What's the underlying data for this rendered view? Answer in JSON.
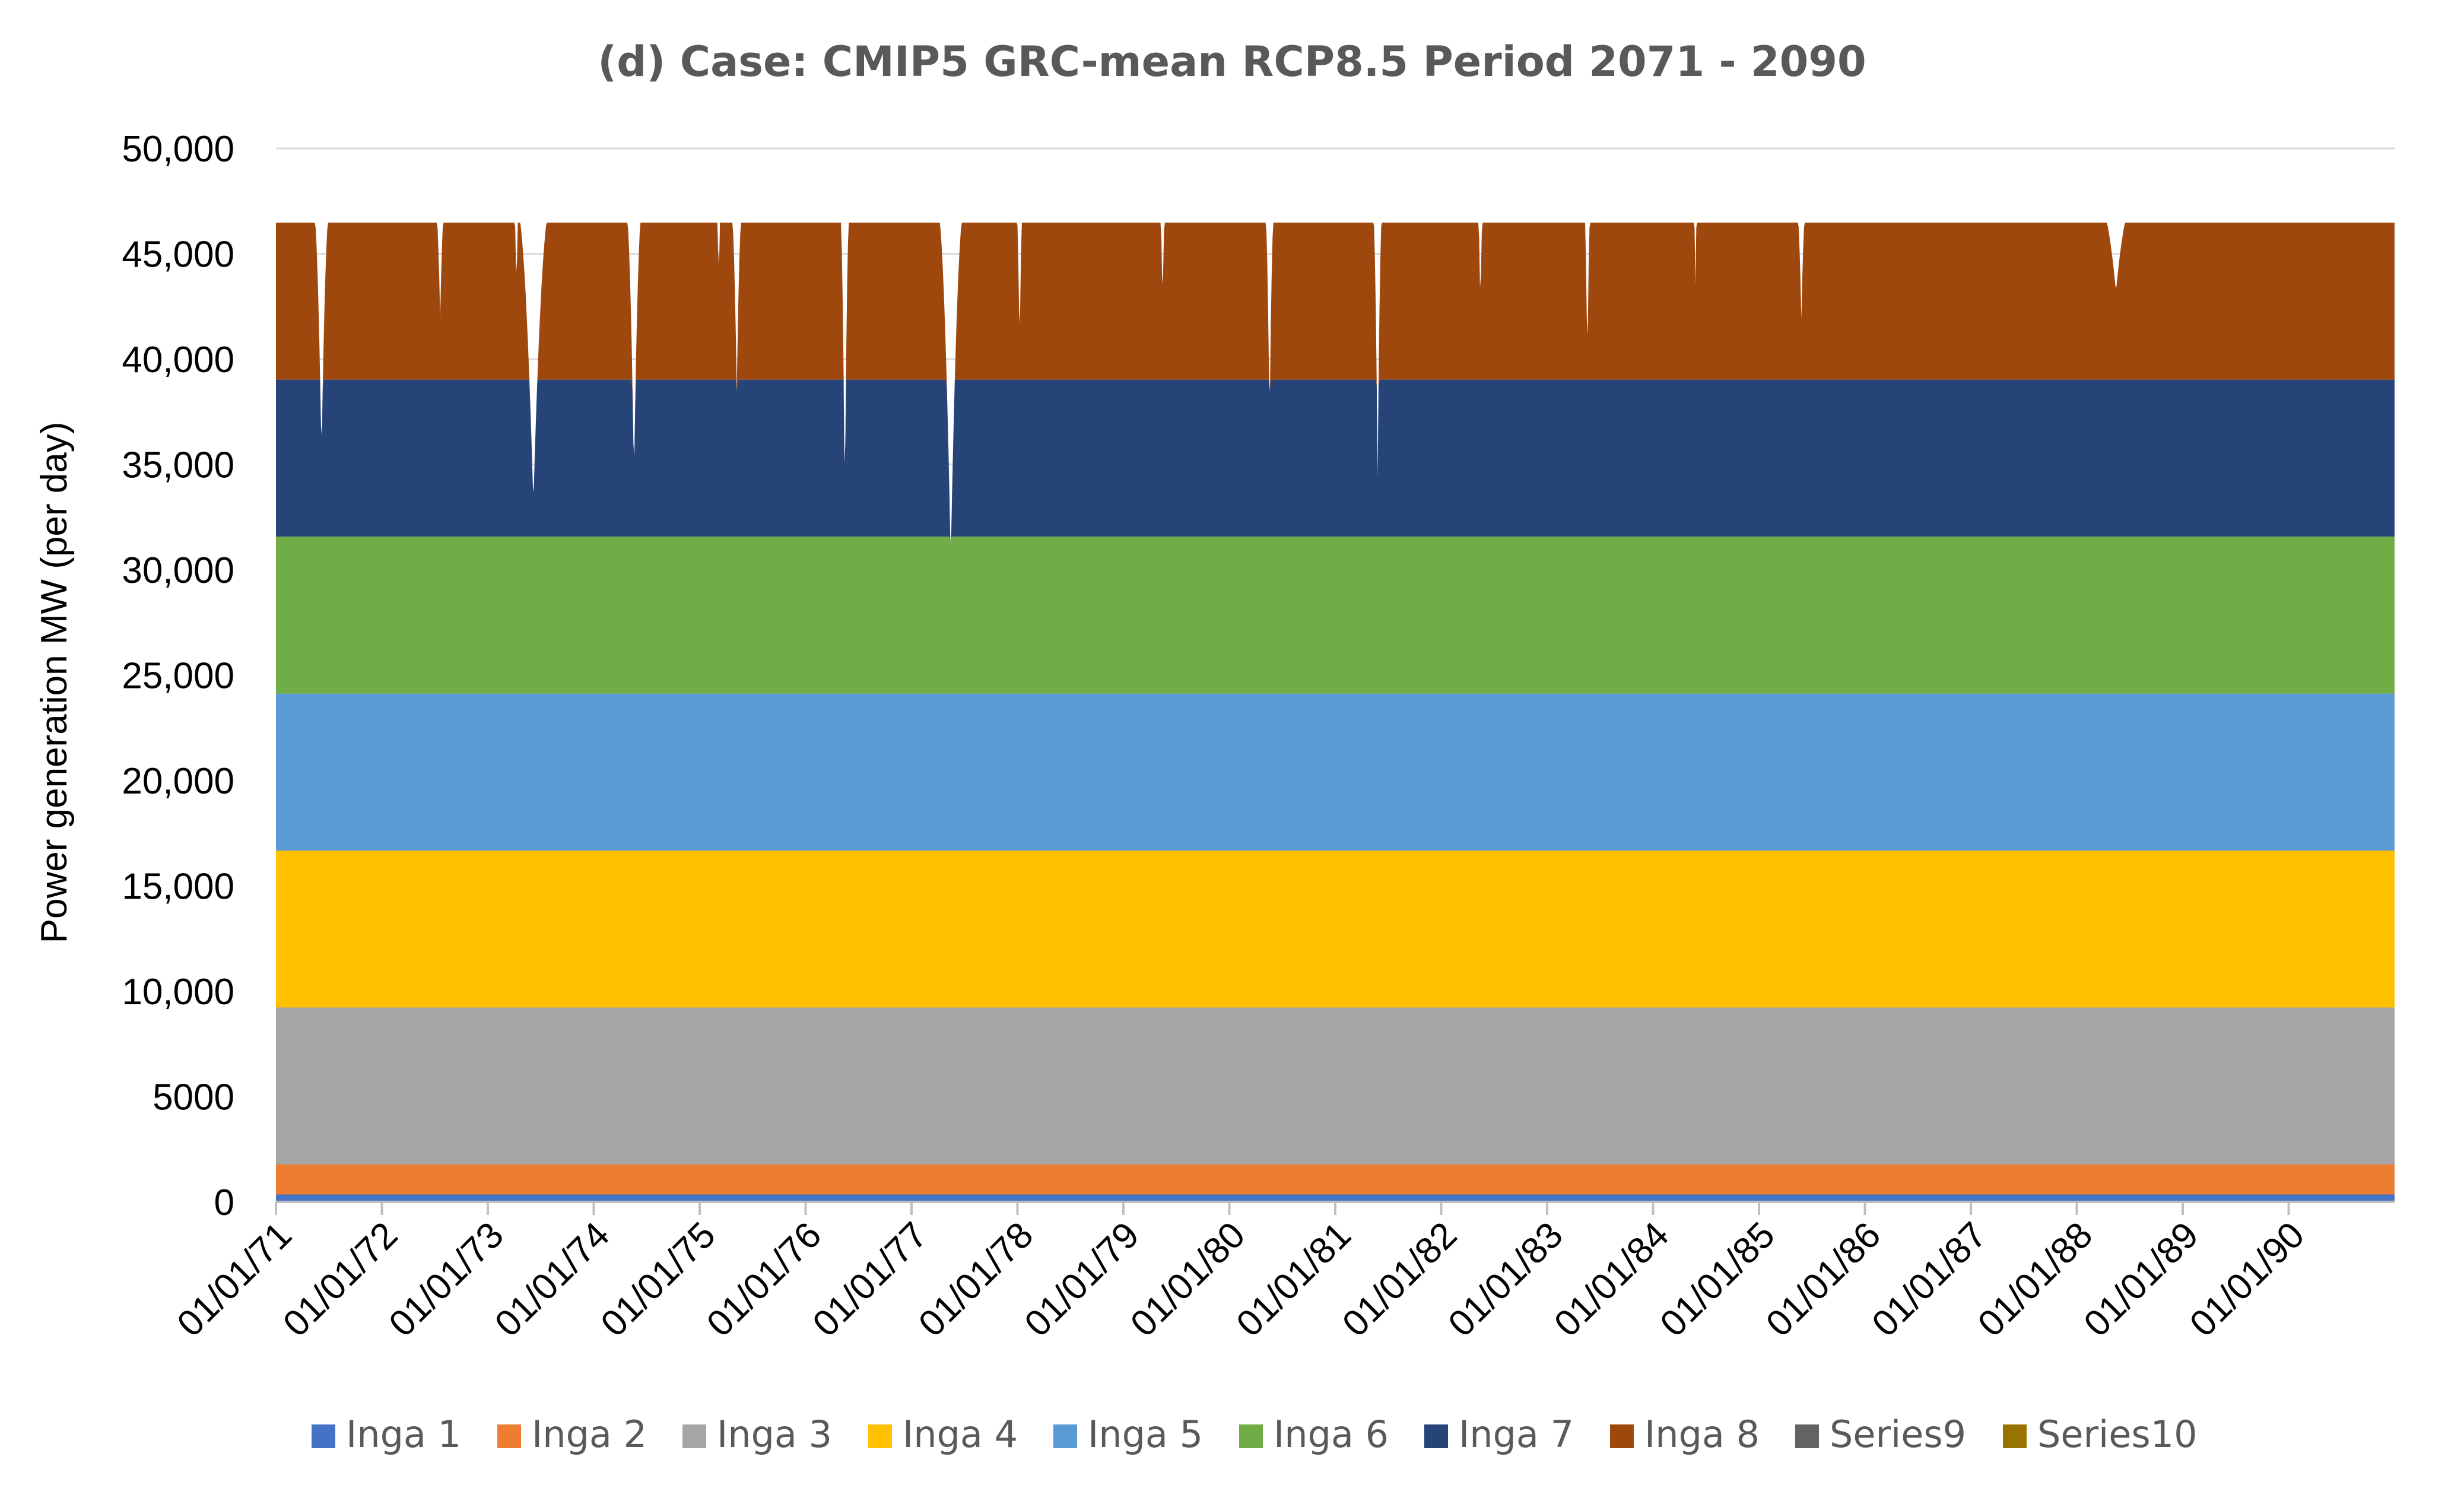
{
  "chart_data": {
    "type": "area",
    "stacked": true,
    "title": "(d)  Case: CMIP5 GRC-mean  RCP8.5  Period 2071 - 2090",
    "xlabel": "",
    "ylabel": "Power generation MW (per day)",
    "ylim": [
      0,
      50000
    ],
    "y_ticks": [
      0,
      5000,
      10000,
      15000,
      20000,
      25000,
      30000,
      35000,
      40000,
      45000,
      50000
    ],
    "y_tick_labels": [
      "0",
      "5000",
      "10,000",
      "15,000",
      "20,000",
      "25,000",
      "30,000",
      "35,000",
      "40,000",
      "45,000",
      "50,000"
    ],
    "x_range_years": [
      1971,
      1991
    ],
    "x_tick_labels": [
      "01/01/71",
      "01/01/72",
      "01/01/73",
      "01/01/74",
      "01/01/75",
      "01/01/76",
      "01/01/77",
      "01/01/78",
      "01/01/79",
      "01/01/80",
      "01/01/81",
      "01/01/82",
      "01/01/83",
      "01/01/84",
      "01/01/85",
      "01/01/86",
      "01/01/87",
      "01/01/88",
      "01/01/89",
      "01/01/90"
    ],
    "grid": "horizontal",
    "legend_position": "bottom",
    "series": [
      {
        "name": "Inga 1",
        "color": "#4472C4",
        "value": 351
      },
      {
        "name": "Inga 2",
        "color": "#ED7D31",
        "value": 1424
      },
      {
        "name": "Inga 3",
        "color": "#A5A5A5",
        "value": 7450
      },
      {
        "name": "Inga 4",
        "color": "#FFC000",
        "value": 7450
      },
      {
        "name": "Inga 5",
        "color": "#5B9BD5",
        "value": 7450
      },
      {
        "name": "Inga 6",
        "color": "#70AD47",
        "value": 7450
      },
      {
        "name": "Inga 7",
        "color": "#264478",
        "value": 7450
      },
      {
        "name": "Inga 8",
        "color": "#9E480E",
        "value": 7450
      },
      {
        "name": "Series9",
        "color": "#636363",
        "value": 0
      },
      {
        "name": "Series10",
        "color": "#997300",
        "value": 0
      }
    ],
    "full_capacity_total": 47475,
    "dips": [
      {
        "year": 1971.43,
        "min": 35300,
        "width": 0.17
      },
      {
        "year": 1972.55,
        "min": 42000,
        "width": 0.1
      },
      {
        "year": 1973.27,
        "min": 42800,
        "width": 0.05
      },
      {
        "year": 1973.43,
        "min": 33100,
        "width": 0.35
      },
      {
        "year": 1974.38,
        "min": 34300,
        "width": 0.17
      },
      {
        "year": 1975.18,
        "min": 43000,
        "width": 0.04
      },
      {
        "year": 1975.35,
        "min": 38500,
        "width": 0.12
      },
      {
        "year": 1976.37,
        "min": 33000,
        "width": 0.1
      },
      {
        "year": 1977.37,
        "min": 30400,
        "width": 0.28
      },
      {
        "year": 1978.02,
        "min": 40300,
        "width": 0.07
      },
      {
        "year": 1979.37,
        "min": 42400,
        "width": 0.06
      },
      {
        "year": 1980.38,
        "min": 37000,
        "width": 0.1
      },
      {
        "year": 1981.4,
        "min": 34400,
        "width": 0.1
      },
      {
        "year": 1982.37,
        "min": 42200,
        "width": 0.06
      },
      {
        "year": 1983.38,
        "min": 39600,
        "width": 0.07
      },
      {
        "year": 1984.4,
        "min": 43500,
        "width": 0.04
      },
      {
        "year": 1985.4,
        "min": 41900,
        "width": 0.1
      },
      {
        "year": 1987.38,
        "min": 45900,
        "width": 0.03
      },
      {
        "year": 1988.37,
        "min": 43200,
        "width": 0.35
      },
      {
        "year": 1989.4,
        "min": 46500,
        "width": 0.04
      }
    ]
  }
}
